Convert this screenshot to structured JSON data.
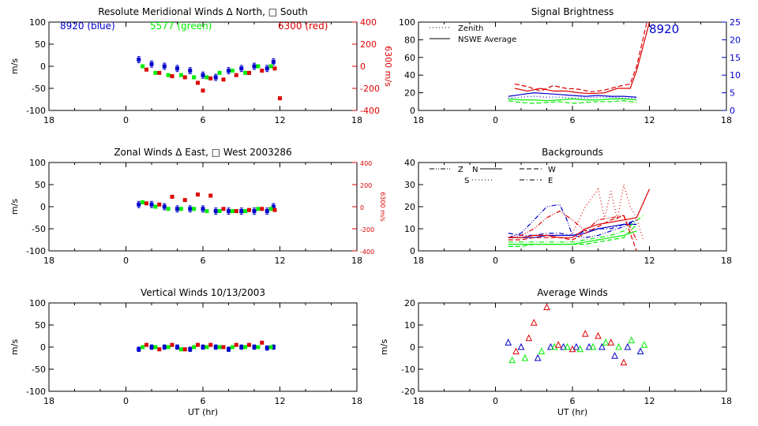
{
  "colors": {
    "blue": "#0000cc",
    "green": "#00ee00",
    "red": "#dd0000",
    "black": "#000000"
  },
  "chart_data": [
    {
      "type": "scatter",
      "title": "Resolute Meridional Winds Δ North, □ South",
      "xlabel": "",
      "ylabel": "m/s",
      "y2label": "6300 m/s",
      "xlim": [
        18,
        42
      ],
      "xticklabels": [
        "18",
        "0",
        "6",
        "12",
        "18"
      ],
      "ylim": [
        -100,
        100
      ],
      "yticks": [
        -100,
        -50,
        0,
        50,
        100
      ],
      "y2lim": [
        -400,
        400
      ],
      "y2ticks": [
        -400,
        -200,
        0,
        200,
        400
      ],
      "legend": [
        "8920 (blue)",
        "5577 (green)",
        "6300 (red)"
      ],
      "series": [
        {
          "name": "8920",
          "color": "blue",
          "err": 7,
          "x": [
            25,
            26,
            27,
            28,
            29,
            30,
            31,
            32,
            33,
            34,
            35,
            35.5
          ],
          "y": [
            15,
            5,
            0,
            -5,
            -10,
            -20,
            -25,
            -10,
            -5,
            0,
            -5,
            10
          ]
        },
        {
          "name": "5577",
          "color": "green",
          "x": [
            25.3,
            26.3,
            27.3,
            28.3,
            29.3,
            30.3,
            31.3,
            32.3,
            33.3,
            34.3,
            35.3
          ],
          "y": [
            0,
            -15,
            -20,
            -20,
            -25,
            -25,
            -15,
            -10,
            -15,
            0,
            0
          ]
        },
        {
          "name": "6300",
          "color": "red",
          "axis": "y2",
          "x": [
            25.6,
            26.6,
            27.6,
            28.6,
            29.6,
            30,
            30.6,
            31.6,
            32.6,
            33.6,
            34.6,
            35.6,
            36
          ],
          "y": [
            -30,
            -60,
            -90,
            -100,
            -150,
            -220,
            -110,
            -120,
            -80,
            -60,
            -40,
            -20,
            -290
          ]
        }
      ]
    },
    {
      "type": "line",
      "title": "Signal Brightness",
      "xlabel": "",
      "ylabel": "",
      "xlim": [
        18,
        42
      ],
      "xticklabels": [
        "18",
        "0",
        "6",
        "12",
        "18"
      ],
      "ylim": [
        0,
        100
      ],
      "yticks": [
        0,
        20,
        40,
        60,
        80,
        100
      ],
      "y2lim": [
        0,
        25
      ],
      "y2ticks": [
        0,
        5,
        10,
        15,
        20,
        25
      ],
      "legend": [
        "Zenith",
        "NSWE Average"
      ],
      "annotation": "8920",
      "series": [
        {
          "name": "NSWE Average 8920",
          "color": "blue",
          "style": "solid",
          "x": [
            25,
            26,
            27,
            28,
            29,
            30,
            31,
            32,
            33,
            34,
            35
          ],
          "y": [
            16,
            18,
            20,
            19,
            18,
            17,
            16,
            17,
            16,
            16,
            15
          ]
        },
        {
          "name": "Zenith 8920",
          "color": "blue",
          "style": "dotted",
          "x": [
            25,
            26,
            27,
            28,
            29,
            30,
            31,
            32,
            33,
            34,
            35
          ],
          "y": [
            14,
            15,
            16,
            15,
            15,
            14,
            14,
            15,
            15,
            14,
            14
          ]
        },
        {
          "name": "NSWE Average 5577",
          "color": "green",
          "style": "solid",
          "x": [
            25,
            26,
            27,
            28,
            29,
            30,
            31,
            32,
            33,
            34,
            35
          ],
          "y": [
            13,
            12,
            12,
            11,
            12,
            13,
            12,
            12,
            13,
            13,
            12
          ]
        },
        {
          "name": "Zenith 5577",
          "color": "green",
          "style": "dashed",
          "x": [
            25,
            26,
            27,
            28,
            29,
            30,
            31,
            32,
            33,
            34,
            35
          ],
          "y": [
            11,
            9,
            8,
            9,
            10,
            8,
            9,
            10,
            10,
            11,
            9
          ]
        },
        {
          "name": "NSWE Average 6300",
          "color": "red",
          "style": "solid",
          "x": [
            25.5,
            26.5,
            27.5,
            28.5,
            29.5,
            30.5,
            31.5,
            32.5,
            33.5,
            34.5,
            35,
            36
          ],
          "y": [
            25,
            22,
            25,
            22,
            22,
            20,
            19,
            20,
            25,
            25,
            45,
            100
          ]
        },
        {
          "name": "Zenith 6300",
          "color": "red",
          "style": "dashed",
          "x": [
            25.5,
            26.5,
            27.5,
            28.5,
            29.5,
            30.5,
            31.5,
            32.5,
            33.5,
            34.5,
            35,
            35.8
          ],
          "y": [
            30,
            27,
            22,
            28,
            25,
            24,
            21,
            23,
            27,
            30,
            50,
            100
          ]
        }
      ]
    },
    {
      "type": "scatter",
      "title": "Zonal Winds Δ East, □ West 2003286",
      "xlabel": "",
      "ylabel": "m/s",
      "y2label": "6300 m/s",
      "xlim": [
        18,
        42
      ],
      "xticklabels": [
        "18",
        "0",
        "6",
        "12",
        "18"
      ],
      "ylim": [
        -100,
        100
      ],
      "yticks": [
        -100,
        -50,
        0,
        50,
        100
      ],
      "y2lim": [
        -400,
        400
      ],
      "y2ticks": [
        -400,
        -200,
        0,
        200,
        400
      ],
      "series": [
        {
          "name": "8920",
          "color": "blue",
          "err": 7,
          "x": [
            25,
            26,
            27,
            28,
            29,
            30,
            31,
            32,
            33,
            34,
            35,
            35.5
          ],
          "y": [
            5,
            5,
            0,
            -5,
            -5,
            -5,
            -10,
            -10,
            -10,
            -10,
            -10,
            0
          ]
        },
        {
          "name": "5577",
          "color": "green",
          "x": [
            25.3,
            26.3,
            27.3,
            28.3,
            29.3,
            30.3,
            31.3,
            32.3,
            33.3,
            34.3,
            35.3
          ],
          "y": [
            10,
            0,
            -5,
            -5,
            -5,
            -10,
            -10,
            -10,
            -10,
            -5,
            -5
          ]
        },
        {
          "name": "6300",
          "color": "red",
          "axis": "y2",
          "x": [
            25.6,
            26.6,
            27.6,
            28.6,
            29.6,
            30.6,
            31.6,
            32.6,
            33.6,
            34.6,
            35.6
          ],
          "y": [
            30,
            20,
            90,
            60,
            110,
            100,
            -20,
            -40,
            -30,
            -20,
            -30
          ]
        }
      ]
    },
    {
      "type": "line",
      "title": "Backgrounds",
      "xlabel": "",
      "ylabel": "",
      "xlim": [
        18,
        42
      ],
      "xticklabels": [
        "18",
        "0",
        "6",
        "12",
        "18"
      ],
      "ylim": [
        0,
        40
      ],
      "yticks": [
        0,
        10,
        20,
        30,
        40
      ],
      "legend": [
        "Z",
        "N",
        "W",
        "S",
        "E"
      ],
      "series": [
        {
          "name": "Z 8920",
          "color": "blue",
          "style": "dashdotdot",
          "x": [
            25,
            26,
            27,
            28,
            29,
            29.5,
            30,
            31,
            32,
            33,
            34,
            35
          ],
          "y": [
            6,
            8,
            14,
            20,
            21,
            15,
            7,
            6,
            7,
            9,
            11,
            14
          ]
        },
        {
          "name": "N 8920",
          "color": "blue",
          "style": "solid",
          "x": [
            25,
            26,
            27,
            28,
            29,
            30,
            31,
            32,
            33,
            34,
            35
          ],
          "y": [
            6,
            6,
            6,
            7,
            7,
            7,
            8,
            10,
            11,
            12,
            12
          ]
        },
        {
          "name": "E 8920",
          "color": "blue",
          "style": "dashdot",
          "x": [
            25,
            26,
            27,
            28,
            29,
            30,
            31,
            32,
            33,
            34,
            35
          ],
          "y": [
            8,
            7,
            7,
            8,
            8,
            7,
            9,
            10,
            10,
            12,
            14
          ]
        },
        {
          "name": "N 5577",
          "color": "green",
          "style": "solid",
          "x": [
            25,
            26,
            27,
            28,
            29,
            30,
            31,
            32,
            33,
            34,
            35
          ],
          "y": [
            3,
            3,
            3,
            3,
            3,
            3,
            4,
            5,
            6,
            7,
            9
          ]
        },
        {
          "name": "W 5577",
          "color": "green",
          "style": "dashed",
          "x": [
            25,
            26,
            27,
            28,
            29,
            30,
            31,
            32,
            33,
            34,
            35
          ],
          "y": [
            2,
            2,
            3,
            3,
            3,
            3,
            3,
            4,
            5,
            6,
            12
          ]
        },
        {
          "name": "E 5577",
          "color": "green",
          "style": "dashdot",
          "x": [
            25,
            26,
            27,
            28,
            29,
            30,
            31,
            32,
            33,
            34,
            35.5
          ],
          "y": [
            4,
            4,
            4,
            4,
            4,
            4,
            5,
            6,
            7,
            9,
            16
          ]
        },
        {
          "name": "N 6300",
          "color": "red",
          "style": "solid",
          "x": [
            25,
            26,
            27,
            28,
            29,
            30,
            31,
            32,
            33,
            34,
            35,
            36
          ],
          "y": [
            6,
            6,
            7,
            7,
            6,
            6,
            10,
            12,
            13,
            14,
            15,
            28
          ]
        },
        {
          "name": "Z 6300",
          "color": "red",
          "style": "dotted",
          "x": [
            30,
            31,
            32,
            32.5,
            33,
            33.5,
            34,
            34.5,
            35,
            35.5
          ],
          "y": [
            8,
            20,
            28,
            15,
            27,
            14,
            30,
            20,
            15,
            5
          ]
        },
        {
          "name": "S 6300",
          "color": "red",
          "style": "dashdotdot",
          "x": [
            25,
            26,
            27,
            28,
            29,
            30,
            31,
            32,
            33,
            34,
            35
          ],
          "y": [
            6,
            7,
            10,
            15,
            18,
            14,
            9,
            14,
            15,
            16,
            5
          ]
        },
        {
          "name": "W 6300",
          "color": "red",
          "style": "dashed",
          "x": [
            25,
            26,
            27,
            28,
            29,
            30,
            31,
            32,
            33,
            34,
            35
          ],
          "y": [
            5,
            5,
            6,
            6,
            6,
            5,
            8,
            11,
            14,
            16,
            0
          ]
        }
      ]
    },
    {
      "type": "scatter",
      "title": "Vertical Winds 10/13/2003",
      "xlabel": "UT (hr)",
      "ylabel": "m/s",
      "xlim": [
        18,
        42
      ],
      "xticklabels": [
        "18",
        "0",
        "6",
        "12",
        "18"
      ],
      "ylim": [
        -100,
        100
      ],
      "yticks": [
        -100,
        -50,
        0,
        50,
        100
      ],
      "series": [
        {
          "name": "8920",
          "color": "blue",
          "err": 5,
          "x": [
            25,
            26,
            27,
            28,
            29,
            30,
            31,
            32,
            33,
            34,
            35,
            35.5
          ],
          "y": [
            -5,
            0,
            0,
            0,
            -5,
            0,
            0,
            -5,
            0,
            0,
            -2,
            0
          ]
        },
        {
          "name": "5577",
          "color": "green",
          "x": [
            25.3,
            26.3,
            27.3,
            28.3,
            29.3,
            30.3,
            31.3,
            32.3,
            33.3,
            34.3,
            35.3
          ],
          "y": [
            0,
            0,
            0,
            -5,
            0,
            0,
            0,
            0,
            0,
            0,
            0
          ]
        },
        {
          "name": "6300",
          "color": "red",
          "x": [
            25.6,
            26.6,
            27.6,
            28.6,
            29.6,
            30.6,
            31.6,
            32.6,
            33.6,
            34.6
          ],
          "y": [
            5,
            -5,
            5,
            -5,
            5,
            5,
            0,
            5,
            5,
            10
          ]
        }
      ]
    },
    {
      "type": "scatter",
      "title": "Average Winds",
      "xlabel": "UT (hr)",
      "ylabel": "m/s",
      "xlim": [
        18,
        42
      ],
      "xticklabels": [
        "18",
        "0",
        "6",
        "12",
        "18"
      ],
      "ylim": [
        -20,
        20
      ],
      "yticks": [
        -20,
        -10,
        0,
        10,
        20
      ],
      "series": [
        {
          "name": "8920",
          "color": "blue",
          "marker": "triangle",
          "x": [
            25,
            26,
            27.3,
            28.3,
            29.3,
            30.3,
            31.3,
            32.3,
            33.3,
            34.3,
            35.3
          ],
          "y": [
            2,
            0,
            -5,
            0,
            0,
            0,
            0,
            0,
            -4,
            0,
            -2
          ]
        },
        {
          "name": "5577",
          "color": "green",
          "marker": "triangle",
          "x": [
            25.3,
            26.3,
            27.6,
            28.6,
            29.6,
            30.6,
            31.6,
            32.6,
            33.6,
            34.6,
            35.6
          ],
          "y": [
            -6,
            -5,
            -2,
            0,
            0,
            -1,
            0,
            2,
            0,
            3,
            1
          ]
        },
        {
          "name": "6300",
          "color": "red",
          "marker": "triangle",
          "x": [
            25.6,
            26.6,
            27,
            28,
            28.9,
            30,
            31,
            32,
            33,
            34
          ],
          "y": [
            -2,
            4,
            11,
            18,
            1,
            -1,
            6,
            5,
            2,
            -7
          ]
        }
      ]
    }
  ]
}
